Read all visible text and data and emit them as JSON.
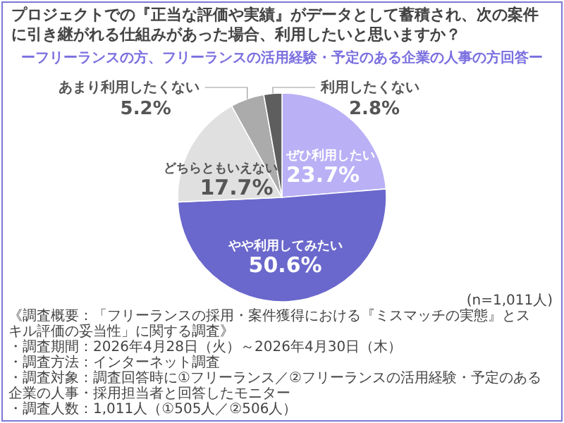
{
  "chart_data": {
    "type": "pie",
    "title": "プロジェクトでの『正当な評価や実績』がデータとして蓄積され、次の案件に引き継がれる仕組みがあった場合、利用したいと思いますか？",
    "subtitle": "ーフリーランスの方、フリーランスの活用経験・予定のある企業の人事の方回答ー",
    "categories": [
      "ぜひ利用したい",
      "やや利用してみたい",
      "どちらともいえない",
      "あまり利用したくない",
      "利用したくない"
    ],
    "values": [
      23.7,
      50.6,
      17.7,
      5.2,
      2.8
    ],
    "value_labels": [
      "23.7%",
      "50.6%",
      "17.7%",
      "5.2%",
      "2.8%"
    ],
    "colors": [
      "#b9b0f6",
      "#6a68cc",
      "#e0e0e0",
      "#ababab",
      "#5e5e5e"
    ],
    "annotations": [
      "(n=1,011人)",
      "《調査概要：「フリーランスの採用・案件獲得における『ミスマッチの実態』とスキル評価の妥当性」に関する調査》",
      "・調査期間：2026年4月28日（火）～2026年4月30日（木）",
      "・調査方法：インターネット調査",
      "・調査対象：調査回答時に①フリーランス／②フリーランスの活用経験・予定のある企業の人事・採用担当者と回答したモニター",
      "・調査人数：1,011人（①505人／②506人）"
    ]
  }
}
